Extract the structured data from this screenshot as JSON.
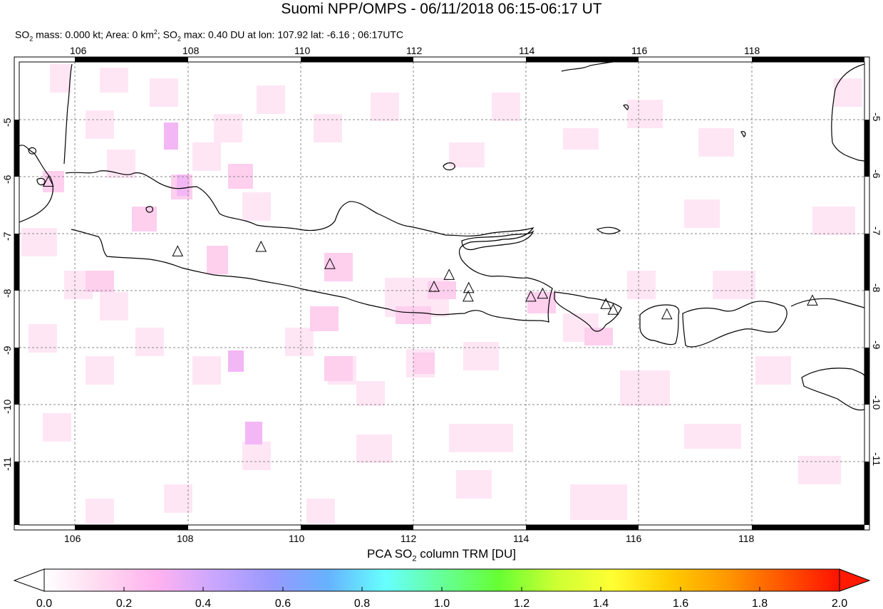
{
  "title": "Suomi NPP/OMPS - 06/11/2018 06:15-06:17 UT",
  "subtitle": {
    "p1": "SO",
    "sub1": "2",
    "p2": " mass: 0.000 kt; Area: 0 km",
    "sup1": "2",
    "p3": "; SO",
    "sub2": "2",
    "p4": " max: 0.40 DU at lon: 107.92 lat: -6.16 ; 06:17UTC"
  },
  "map": {
    "lon_range": [
      104.9,
      120.0
    ],
    "lat_range": [
      -12.1,
      -4.0
    ],
    "lon_ticks": [
      "106",
      "108",
      "110",
      "112",
      "114",
      "116",
      "118"
    ],
    "lat_ticks": [
      "-5",
      "-6",
      "-7",
      "-8",
      "-9",
      "-10",
      "-11"
    ],
    "grid": true,
    "coastline_color": "#000000",
    "volcano_marker": "triangle-icon",
    "volcanoes": [
      {
        "lon": 105.42,
        "lat": -6.1
      },
      {
        "lon": 107.73,
        "lat": -7.32
      },
      {
        "lon": 109.22,
        "lat": -7.24
      },
      {
        "lon": 110.45,
        "lat": -7.54
      },
      {
        "lon": 112.31,
        "lat": -7.94
      },
      {
        "lon": 112.58,
        "lat": -7.73
      },
      {
        "lon": 112.93,
        "lat": -7.96
      },
      {
        "lon": 112.92,
        "lat": -8.11
      },
      {
        "lon": 114.04,
        "lat": -8.11
      },
      {
        "lon": 114.25,
        "lat": -8.06
      },
      {
        "lon": 115.38,
        "lat": -8.24
      },
      {
        "lon": 115.51,
        "lat": -8.34
      },
      {
        "lon": 116.47,
        "lat": -8.42
      },
      {
        "lon": 119.07,
        "lat": -8.18
      }
    ]
  },
  "colorbar": {
    "title_p1": "PCA SO",
    "title_sub": "2",
    "title_p2": " column TRM [DU]",
    "ticks": [
      "0.0",
      "0.2",
      "0.4",
      "0.6",
      "0.8",
      "1.0",
      "1.2",
      "1.4",
      "1.6",
      "1.8",
      "2.0"
    ],
    "colors": [
      "#ffffff",
      "#ffd9f0",
      "#ffb2f0",
      "#c9a6ff",
      "#9999ff",
      "#66b2ff",
      "#66ffff",
      "#66ff99",
      "#66ff33",
      "#ccff33",
      "#ffff33",
      "#ffcc00",
      "#ff9900",
      "#ff5500",
      "#ff1100"
    ],
    "under_color": "#ffffff",
    "over_color": "#ff1a00"
  }
}
